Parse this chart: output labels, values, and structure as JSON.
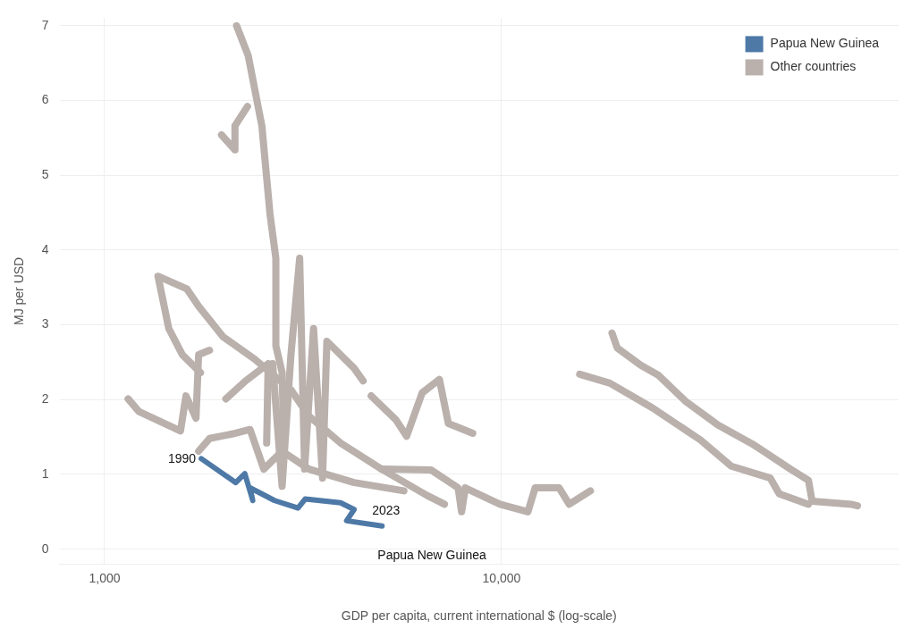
{
  "chart_data": {
    "type": "line",
    "xlabel": "GDP per capita, current international $ (log-scale)",
    "ylabel": "MJ per USD",
    "log": "x",
    "xlim": [
      770,
      100000
    ],
    "xticks": [
      {
        "value": 1000,
        "label": "1,000"
      },
      {
        "value": 10000,
        "label": "10,000"
      }
    ],
    "ylim": [
      -0.2,
      7.1
    ],
    "yticks": [
      0,
      1,
      2,
      3,
      4,
      5,
      6,
      7
    ],
    "grid": true,
    "legend": "top right",
    "marker": "none",
    "line_style": "solid",
    "series": [
      {
        "name": "Papua New Guinea",
        "color": "#4e79a7",
        "x": [
          1752,
          2140,
          2255,
          2362,
          2325,
          2680,
          3070,
          3200,
          3930,
          4250,
          4070,
          5000
        ],
        "values": [
          1.21,
          0.89,
          1.01,
          0.65,
          0.82,
          0.65,
          0.55,
          0.67,
          0.62,
          0.53,
          0.38,
          0.31
        ]
      },
      {
        "name": "Other countries",
        "color": "#bab0ac",
        "x": [
          2150,
          2300,
          2490,
          2610,
          2700,
          2700,
          2800,
          2830
        ],
        "values": [
          7.0,
          6.6,
          5.66,
          4.48,
          3.89,
          2.72,
          2.36,
          1.31
        ]
      },
      {
        "color": "#bab0ac",
        "x": [
          2290,
          2130,
          2130,
          1970
        ],
        "values": [
          5.92,
          5.66,
          5.34,
          5.54
        ]
      },
      {
        "color": "#bab0ac",
        "x": [
          1744,
          1570,
          1451,
          1363,
          1612,
          1725,
          1988,
          2388,
          2947,
          3272,
          3928,
          4985,
          6480,
          7180
        ],
        "values": [
          2.36,
          2.6,
          2.95,
          3.65,
          3.48,
          3.25,
          2.84,
          2.54,
          2.13,
          1.78,
          1.42,
          1.07,
          0.72,
          0.6
        ]
      },
      {
        "color": "#bab0ac",
        "x": [
          2650,
          2800,
          2947,
          3100,
          3190,
          3360,
          3540,
          3630,
          4250,
          4480
        ],
        "values": [
          2.48,
          0.84,
          2.6,
          3.89,
          1.07,
          2.95,
          0.95,
          2.78,
          2.42,
          2.25
        ]
      },
      {
        "color": "#bab0ac",
        "x": [
          4693,
          5417,
          5766,
          6307,
          6972,
          7343,
          8460
        ],
        "values": [
          2.05,
          1.73,
          1.51,
          2.09,
          2.27,
          1.68,
          1.55
        ]
      },
      {
        "color": "#bab0ac",
        "x": [
          4985,
          6636,
          7770,
          7930,
          8100,
          9900,
          11650,
          12150,
          13960,
          14800,
          16740
        ],
        "values": [
          1.07,
          1.06,
          0.82,
          0.5,
          0.82,
          0.6,
          0.5,
          0.82,
          0.82,
          0.6,
          0.78
        ]
      },
      {
        "color": "#bab0ac",
        "x": [
          18970,
          19560,
          22410,
          24780,
          29030,
          35090,
          43330,
          53430,
          59290,
          60560,
          75930,
          78760
        ],
        "values": [
          2.89,
          2.69,
          2.46,
          2.33,
          1.98,
          1.66,
          1.39,
          1.07,
          0.92,
          0.64,
          0.6,
          0.58
        ]
      },
      {
        "color": "#bab0ac",
        "x": [
          15730,
          18740,
          23980,
          31700,
          37880,
          47520,
          50050,
          59290
        ],
        "values": [
          2.34,
          2.22,
          1.89,
          1.46,
          1.11,
          0.95,
          0.74,
          0.6
        ]
      },
      {
        "color": "#bab0ac",
        "x": [
          1146,
          1220,
          1553,
          1603,
          1699,
          1725,
          1838
        ],
        "values": [
          2.01,
          1.84,
          1.58,
          2.05,
          1.75,
          2.6,
          2.66
        ]
      },
      {
        "color": "#bab0ac",
        "x": [
          1725,
          1838,
          2095,
          2325,
          2518,
          2800,
          3272,
          4250,
          5675
        ],
        "values": [
          1.31,
          1.48,
          1.54,
          1.6,
          1.07,
          1.31,
          1.07,
          0.89,
          0.78
        ]
      },
      {
        "color": "#bab0ac",
        "x": [
          2020,
          2265,
          2582,
          2560
        ],
        "values": [
          2.01,
          2.25,
          2.48,
          1.42
        ]
      }
    ],
    "annotations": [
      {
        "text": "1990",
        "x": 1752,
        "y": 1.21
      },
      {
        "text": "2023",
        "x": 5000,
        "y": 0.31
      },
      "Papua New Guinea"
    ]
  }
}
